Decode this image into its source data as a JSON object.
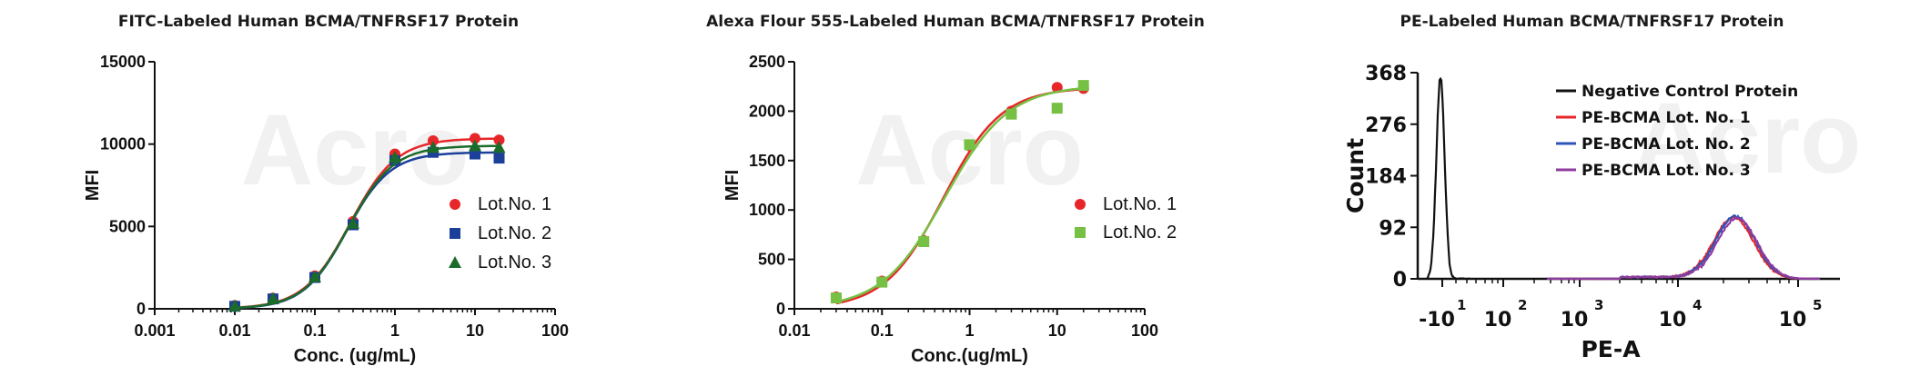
{
  "chart_data": [
    {
      "type": "scatter",
      "title": "FITC-Labeled Human BCMA/TNFRSF17 Protein",
      "xlabel": "Conc. (ug/mL)",
      "ylabel": "MFI",
      "xscale": "log",
      "xlim": [
        0.001,
        100
      ],
      "ylim": [
        0,
        15000
      ],
      "xticks": [
        "0.001",
        "0.01",
        "0.1",
        "1",
        "10",
        "100"
      ],
      "yticks": [
        "0",
        "5000",
        "10000",
        "15000"
      ],
      "legend_position": "right",
      "x": [
        0.01,
        0.03,
        0.1,
        0.3,
        1,
        3,
        10,
        20
      ],
      "series": [
        {
          "name": "Lot.No. 1",
          "marker": "circle",
          "color": "#e8262a",
          "values": [
            200,
            650,
            2000,
            5300,
            9400,
            10200,
            10350,
            10250
          ]
        },
        {
          "name": "Lot.No. 2",
          "marker": "square",
          "color": "#1c3f9a",
          "values": [
            150,
            600,
            1900,
            5100,
            9000,
            9500,
            9400,
            9150
          ]
        },
        {
          "name": "Lot.No. 3",
          "marker": "triangle",
          "color": "#1b6b2a",
          "values": [
            180,
            620,
            1950,
            5200,
            9200,
            9800,
            9900,
            9800
          ]
        }
      ]
    },
    {
      "type": "scatter",
      "title": "Alexa Flour 555-Labeled Human BCMA/TNFRSF17 Protein",
      "xlabel": "Conc.(ug/mL)",
      "ylabel": "MFI",
      "xscale": "log",
      "xlim": [
        0.01,
        100
      ],
      "ylim": [
        0,
        2500
      ],
      "xticks": [
        "0.01",
        "0.1",
        "1",
        "10",
        "100"
      ],
      "yticks": [
        "0",
        "500",
        "1000",
        "1500",
        "2000",
        "2500"
      ],
      "legend_position": "right",
      "x": [
        0.03,
        0.1,
        0.3,
        1,
        3,
        10,
        20
      ],
      "series": [
        {
          "name": "Lot.No. 1",
          "marker": "circle",
          "color": "#e8262a",
          "values": [
            120,
            280,
            690,
            1650,
            2000,
            2240,
            2230
          ]
        },
        {
          "name": "Lot.No. 2",
          "marker": "square",
          "color": "#76c043",
          "values": [
            110,
            270,
            680,
            1660,
            1970,
            2030,
            2260
          ]
        }
      ]
    },
    {
      "type": "line",
      "title": "PE-Labeled Human BCMA/TNFRSF17 Protein",
      "xlabel": "PE-A",
      "ylabel": "Count",
      "xscale": "biexponential",
      "ylim": [
        0,
        368
      ],
      "yticks": [
        "0",
        "92",
        "184",
        "276",
        "368"
      ],
      "xticks": [
        {
          "base": "-10",
          "exp": "1"
        },
        {
          "base": "10",
          "exp": "2"
        },
        {
          "base": "10",
          "exp": "3"
        },
        {
          "base": "10",
          "exp": "4"
        },
        {
          "base": "10",
          "exp": "5"
        }
      ],
      "legend_position": "top-right",
      "series": [
        {
          "name": "Negative Control Protein",
          "color": "#111111",
          "peak_at": "-10",
          "peak_count": 362
        },
        {
          "name": "PE-BCMA Lot. No. 1",
          "color": "#e8262a",
          "peak_at": "10^4",
          "peak_count": 110
        },
        {
          "name": "PE-BCMA Lot. No. 2",
          "color": "#2c55b8",
          "peak_at": "10^4",
          "peak_count": 112
        },
        {
          "name": "PE-BCMA Lot. No. 3",
          "color": "#8e3b9e",
          "peak_at": "10^4",
          "peak_count": 108
        }
      ]
    }
  ],
  "watermark": "Acro"
}
